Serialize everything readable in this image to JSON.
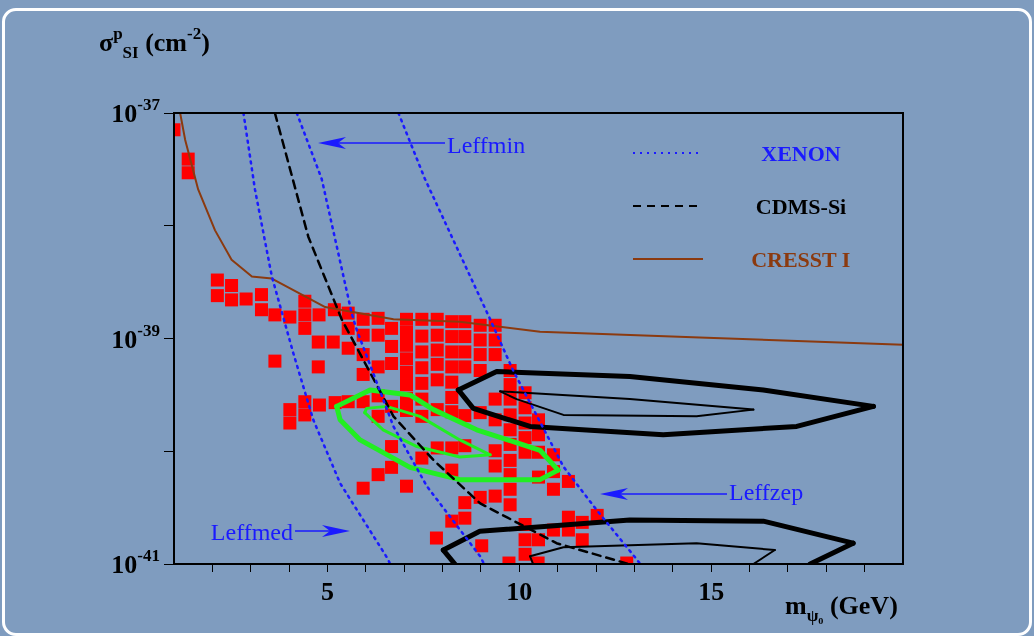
{
  "chart_data": {
    "type": "line",
    "xlabel": "m$_{ψ₀}$ (GeV)",
    "ylabel": "σ$^{p}$$_{SI}$ (cm$^{-2}$)",
    "log": "y",
    "legend": "top right",
    "xlim": [
      1,
      20
    ],
    "xticks": [
      {
        "value": 2,
        "label": null
      },
      {
        "value": 3,
        "label": null
      },
      {
        "value": 4,
        "label": null
      },
      5,
      {
        "value": 6,
        "label": null
      },
      {
        "value": 7,
        "label": null
      },
      {
        "value": 8,
        "label": null
      },
      {
        "value": 9,
        "label": null
      },
      10,
      {
        "value": 11,
        "label": null
      },
      {
        "value": 12,
        "label": null
      },
      {
        "value": 13,
        "label": null
      },
      {
        "value": 14,
        "label": null
      },
      15,
      {
        "value": 16,
        "label": null
      },
      {
        "value": 17,
        "label": null
      },
      {
        "value": 18,
        "label": null
      },
      {
        "value": 19,
        "label": null
      }
    ],
    "ylim": [
      1e-41,
      1e-37
    ],
    "yticks": [
      {
        "value": 1e-37,
        "label": "10$^{-37}$"
      },
      {
        "value": 1e-38,
        "label": null
      },
      {
        "value": 1e-39,
        "label": "10$^{-39}$"
      },
      {
        "value": 1e-40,
        "label": null
      },
      {
        "value": 1e-41,
        "label": "10$^{-41}$"
      }
    ],
    "annotations": [
      "Leffmin",
      "Leffzep",
      "Leffmed"
    ],
    "series": [
      {
        "name": "XENON",
        "color": "#1a1aff",
        "line_style": "dotted",
        "x": [
          2.81,
          3.11,
          3.55,
          4.11,
          4.63,
          5.33,
          6.58,
          6.63
        ],
        "values": [
          1e-37,
          2.1e-38,
          3.55e-39,
          7.4e-40,
          1.9e-40,
          5.2e-41,
          1.1e-41,
          1e-41
        ]
      },
      {
        "color": "#1a1aff",
        "line_style": "dotted",
        "x": [
          4.2,
          4.85,
          5.63,
          5.76,
          6.72,
          7.59,
          8.98,
          9.08
        ],
        "values": [
          1e-37,
          2.6e-38,
          1.68e-39,
          1.2e-39,
          1.66e-40,
          4.9e-41,
          1.17e-41,
          1e-41
        ]
      },
      {
        "color": "#1a1aff",
        "line_style": "dotted",
        "x": [
          6.85,
          7.54,
          9.24,
          9.84,
          11.15,
          12.02,
          13.06,
          13.15
        ],
        "values": [
          1e-37,
          2.6e-38,
          1.48e-39,
          5.2e-40,
          7.3e-41,
          3e-41,
          1.1e-41,
          1e-41
        ]
      },
      {
        "name": "CDMS-Si",
        "color": "#000000",
        "line_style": "dashed",
        "x": [
          3.63,
          4.5,
          5.37,
          6.72,
          7.77,
          8.98,
          10.97,
          12.85
        ],
        "values": [
          1e-37,
          8e-39,
          1.48e-39,
          2.04e-40,
          8.3e-41,
          3.45e-41,
          1.53e-41,
          1e-41
        ]
      },
      {
        "name": "CRESST I",
        "color": "#8b3a0f",
        "line_style": "solid",
        "x": [
          1.16,
          1.29,
          1.63,
          2.07,
          2.5,
          3.03,
          3.55,
          4.94,
          5.33,
          6.72,
          8.45,
          10.54,
          14.7,
          20
        ],
        "values": [
          1e-37,
          5.8e-38,
          2.1e-38,
          9.1e-39,
          5e-39,
          3.55e-39,
          3.4e-39,
          1.9e-39,
          1.8e-39,
          1.48e-39,
          1.41e-39,
          1.15e-39,
          1.02e-39,
          8.8e-40
        ]
      },
      {
        "color": "#22ee22",
        "line_style": "solid",
        "x": [
          5.24,
          6.11,
          7.15,
          7.76,
          8.89,
          10.54,
          11.01
        ],
        "values": [
          2.5e-40,
          3.5e-40,
          3.16e-40,
          2.34e-40,
          1.55e-40,
          1.02e-40,
          6.8e-41
        ]
      },
      {
        "color": "#22ee22",
        "line_style": "solid",
        "x": [
          5.24,
          5.33,
          5.85,
          7.15,
          8.45,
          10.54,
          11.01
        ],
        "values": [
          2.5e-40,
          1.9e-40,
          1.26e-40,
          7.2e-41,
          5.6e-41,
          5.6e-41,
          6.8e-41
        ]
      },
      {
        "color": "#22ee22",
        "line_style": "solid",
        "x": [
          5.97,
          6.02,
          6.54,
          7.41,
          8.45,
          9.24
        ],
        "values": [
          2.2e-40,
          2.4e-40,
          2.5e-40,
          2.04e-40,
          1.26e-40,
          9.3e-41
        ]
      },
      {
        "color": "#22ee22",
        "line_style": "solid",
        "x": [
          5.97,
          6.45,
          7.33,
          8.45,
          9.24
        ],
        "values": [
          2.2e-40,
          1.55e-40,
          1.1e-40,
          8.9e-41,
          9.3e-41
        ]
      },
      {
        "color": "#000000",
        "line_style": "solid",
        "x": [
          8.41,
          9.41,
          12.88,
          16.36,
          19.23
        ],
        "values": [
          3.5e-40,
          5.1e-40,
          4.6e-40,
          3.5e-40,
          2.5e-40
        ]
      },
      {
        "color": "#000000",
        "line_style": "solid",
        "x": [
          8.41,
          8.8,
          10.28,
          13.75,
          17.23,
          19.23
        ],
        "values": [
          3.5e-40,
          2.4e-40,
          1.66e-40,
          1.4e-40,
          1.66e-40,
          2.5e-40
        ]
      },
      {
        "color": "#000000",
        "line_style": "solid",
        "x": [
          9.5,
          12.88,
          16.1
        ],
        "values": [
          3.4e-40,
          2.9e-40,
          2.34e-40
        ]
      },
      {
        "color": "#000000",
        "line_style": "solid",
        "x": [
          9.5,
          9.93,
          11.15,
          14.62,
          16.1
        ],
        "values": [
          3.4e-40,
          2.9e-40,
          2.1e-40,
          2.04e-40,
          2.34e-40
        ]
      },
      {
        "color": "#000000",
        "line_style": "solid",
        "x": [
          8.02,
          8.32
        ],
        "values": [
          1.33e-41,
          1e-41
        ]
      },
      {
        "color": "#000000",
        "line_style": "solid",
        "x": [
          8.02,
          8.97,
          12.88,
          16.36,
          18.7
        ],
        "values": [
          1.33e-41,
          1.95e-41,
          2.46e-41,
          2.4e-41,
          1.53e-41
        ]
      },
      {
        "color": "#000000",
        "line_style": "solid",
        "x": [
          17.58,
          18.7
        ],
        "values": [
          1e-41,
          1.53e-41
        ]
      },
      {
        "color": "#000000",
        "line_style": "solid",
        "x": [
          10.28,
          10.36
        ],
        "values": [
          1.17e-41,
          1e-41
        ]
      },
      {
        "color": "#000000",
        "line_style": "solid",
        "x": [
          10.28,
          11.15,
          14.62,
          16.66
        ],
        "values": [
          1.17e-41,
          1.41e-41,
          1.53e-41,
          1.33e-41
        ]
      },
      {
        "color": "#000000",
        "line_style": "solid",
        "x": [
          16.1,
          16.66
        ],
        "values": [
          1e-41,
          1.33e-41
        ]
      },
      {
        "type": "scatter",
        "color": "#ff0000",
        "marker": "square",
        "x": [
          1.0,
          1.37,
          1.37,
          2.13,
          2.13,
          2.5,
          2.5,
          2.88,
          3.28,
          3.28,
          3.63,
          4.02,
          4.41,
          4.41,
          4.78,
          5.18,
          3.63,
          4.41,
          4.76,
          4.76,
          5.15,
          5.54,
          5.54,
          5.54,
          5.93,
          5.93,
          5.93,
          5.93,
          6.32,
          6.32,
          6.32,
          6.67,
          6.67,
          6.67,
          7.06,
          7.06,
          7.06,
          7.06,
          7.06,
          7.06,
          7.06,
          7.06,
          7.46,
          7.46,
          7.46,
          7.46,
          7.46,
          7.46,
          7.46,
          7.46,
          7.86,
          7.86,
          7.86,
          7.86,
          7.86,
          7.86,
          7.86,
          8.24,
          8.24,
          8.24,
          8.24,
          8.24,
          8.24,
          8.24,
          8.24,
          8.24,
          8.24,
          8.58,
          8.58,
          8.58,
          8.58,
          8.58,
          8.58,
          8.58,
          8.58,
          8.98,
          8.98,
          8.98,
          8.98,
          8.98,
          8.98,
          9.02,
          9.37,
          9.37,
          9.37,
          9.37,
          9.37,
          9.37,
          9.37,
          9.37,
          9.76,
          9.76,
          9.76,
          9.76,
          9.76,
          9.76,
          9.76,
          9.76,
          9.76,
          9.76,
          9.73,
          10.15,
          10.15,
          10.15,
          10.15,
          10.15,
          10.15,
          10.15,
          10.15,
          10.5,
          10.5,
          10.5,
          10.5,
          10.5,
          10.49,
          10.89,
          10.89,
          10.89,
          10.89,
          11.28,
          11.28,
          11.28,
          11.64,
          11.64,
          12.03,
          12.8,
          7.84,
          5.93,
          6.32,
          6.67,
          6.67,
          7.06,
          4.02,
          4.02,
          4.41,
          4.41,
          4.79,
          5.2,
          5.54,
          5.93,
          6.32,
          6.32,
          6.67
        ],
        "values": [
          7.1e-38,
          3.9e-38,
          2.95e-38,
          3.3e-39,
          2.4e-39,
          2.95e-39,
          2.2e-39,
          2.24e-39,
          2.45e-39,
          1.8e-39,
          1.62e-39,
          1.55e-39,
          2.14e-39,
          1.62e-39,
          1.62e-39,
          1.8e-39,
          6.3e-40,
          1.23e-39,
          9.3e-40,
          5.6e-40,
          9.3e-40,
          1.68e-39,
          1.23e-39,
          8.2e-40,
          1.48e-39,
          1.07e-39,
          7.2e-40,
          4.8e-40,
          1.51e-39,
          1.07e-39,
          5.6e-40,
          1.23e-39,
          8.5e-40,
          6e-40,
          1.48e-39,
          1.13e-39,
          8.7e-40,
          6.6e-40,
          5e-40,
          3.9e-40,
          2.95e-40,
          2.3e-40,
          1.48e-39,
          1.05e-39,
          7.6e-40,
          5.5e-40,
          4e-40,
          2.9e-40,
          2.04e-40,
          8.7e-41,
          1.48e-39,
          1.07e-39,
          7.9e-40,
          5.9e-40,
          4.3e-40,
          2.34e-40,
          1.07e-40,
          1.41e-39,
          1.04e-39,
          7.6e-40,
          5.6e-40,
          4.1e-40,
          3e-40,
          2.24e-40,
          1.07e-40,
          6.8e-41,
          2.4e-41,
          1.41e-39,
          1.04e-39,
          7.6e-40,
          5.6e-40,
          2.07e-40,
          1.12e-40,
          3.5e-41,
          2.55e-41,
          1.31e-39,
          9.7e-40,
          7.2e-40,
          5.2e-40,
          2.2e-40,
          3.9e-41,
          1.45e-41,
          1.31e-39,
          9.7e-40,
          7.2e-40,
          2.9e-40,
          1.9e-40,
          1.01e-40,
          7.4e-41,
          4e-41,
          5.2e-40,
          3.9e-40,
          2.9e-40,
          2.1e-40,
          1.55e-40,
          1.15e-40,
          8.3e-41,
          6.2e-41,
          4.6e-41,
          3.35e-41,
          1.02e-41,
          3.3e-40,
          2.43e-40,
          1.78e-40,
          1.32e-40,
          9.8e-41,
          2.24e-41,
          1.64e-41,
          1.22e-41,
          1.9e-40,
          1.4e-40,
          9.8e-41,
          5.9e-41,
          1.64e-41,
          1.02e-41,
          9.3e-41,
          6.6e-41,
          4.6e-41,
          2e-41,
          5.4e-41,
          2.6e-41,
          2e-41,
          2.34e-41,
          1.64e-41,
          2.7e-41,
          1.02e-41,
          1.7e-41,
          4.7e-41,
          6.2e-41,
          7.2e-41,
          1.1e-40,
          4.9e-41,
          2.34e-40,
          1.78e-40,
          2.75e-40,
          2.1e-40,
          2.57e-40,
          2.7e-40,
          2.75e-40,
          2.75e-40,
          3.1e-40,
          2.04e-40,
          2.5e-40
        ]
      }
    ]
  }
}
